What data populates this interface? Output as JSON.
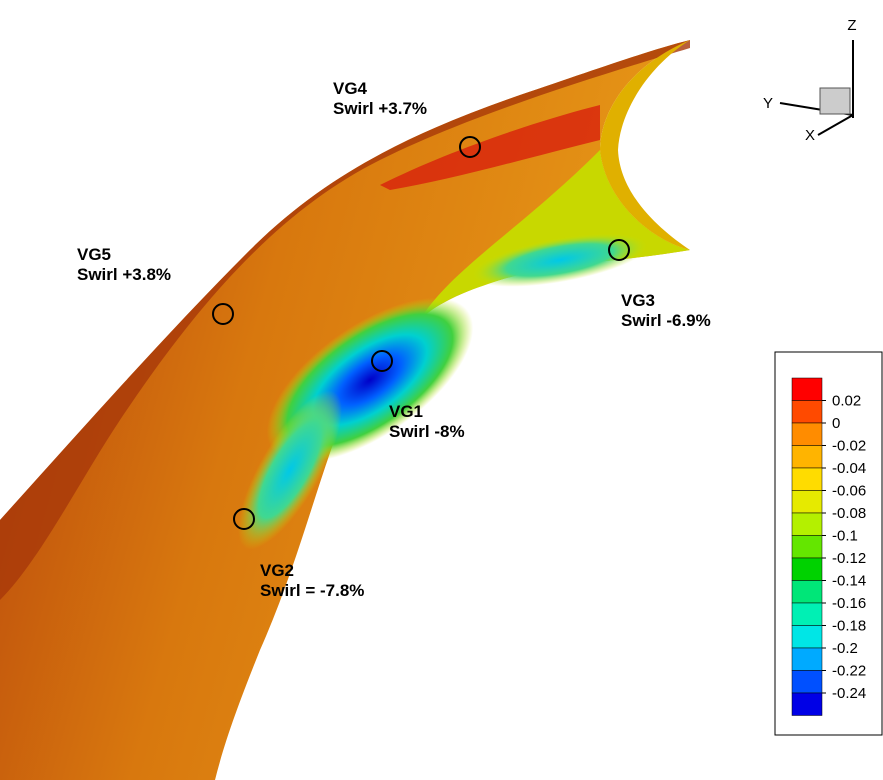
{
  "annotations": [
    {
      "name": "VG4",
      "text": "Swirl +3.7%"
    },
    {
      "name": "VG5",
      "text": "Swirl +3.8%"
    },
    {
      "name": "VG3",
      "text": "Swirl -6.9%"
    },
    {
      "name": "VG1",
      "text": "Swirl -8%"
    },
    {
      "name": "VG2",
      "text": "Swirl = -7.8%"
    }
  ],
  "axes": {
    "x": "X",
    "y": "Y",
    "z": "Z"
  },
  "legend": {
    "levels": [
      0.02,
      0,
      -0.02,
      -0.04,
      -0.06,
      -0.08,
      -0.1,
      -0.12,
      -0.14,
      -0.16,
      -0.18,
      -0.2,
      -0.22,
      -0.24
    ],
    "colors": [
      "#ff0000",
      "#ff4a00",
      "#ff8c00",
      "#ffb400",
      "#ffdc00",
      "#e6ea00",
      "#b4f000",
      "#64e600",
      "#00d200",
      "#00e678",
      "#00f0b4",
      "#00e6e6",
      "#00aaff",
      "#0050ff",
      "#0000e6"
    ]
  }
}
